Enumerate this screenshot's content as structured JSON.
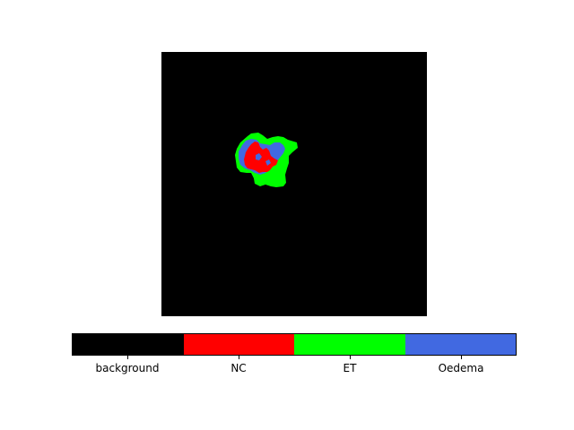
{
  "segmentation": {
    "colors": {
      "background": "#000000",
      "NC": "#ff0000",
      "ET": "#00ff00",
      "Oedema": "#4169e1"
    }
  },
  "colorbar": {
    "classes": [
      {
        "label": "background",
        "color": "#000000"
      },
      {
        "label": "NC",
        "color": "#ff0000"
      },
      {
        "label": "ET",
        "color": "#00ff00"
      },
      {
        "label": "Oedema",
        "color": "#4169e1"
      }
    ]
  }
}
